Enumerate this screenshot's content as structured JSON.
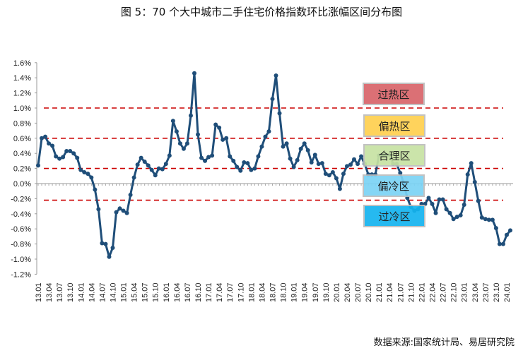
{
  "title": "图 5：70 个大中城市二手住宅价格指数环比涨幅区间分布图",
  "source": "数据来源:国家统计局、易居研究院",
  "zones": [
    {
      "label": "过热区",
      "color": "#d9646a"
    },
    {
      "label": "偏热区",
      "color": "#ffd04f"
    },
    {
      "label": "合理区",
      "color": "#c7e2a3"
    },
    {
      "label": "偏冷区",
      "color": "#7bd3f5"
    },
    {
      "label": "过冷区",
      "color": "#14b4ef"
    }
  ],
  "chart_data": {
    "type": "line",
    "title": "图 5：70 个大中城市二手住宅价格指数环比涨幅区间分布图",
    "xlabel": "",
    "ylabel": "",
    "ylim": [
      -1.2,
      1.6
    ],
    "yticks": [
      "1.6%",
      "1.4%",
      "1.2%",
      "1.0%",
      "0.8%",
      "0.6%",
      "0.4%",
      "0.2%",
      "0.0%",
      "-0.2%",
      "-0.4%",
      "-0.6%",
      "-0.8%",
      "-1.0%",
      "-1.2%"
    ],
    "ytick_values": [
      1.6,
      1.4,
      1.2,
      1.0,
      0.8,
      0.6,
      0.4,
      0.2,
      0,
      -0.2,
      -0.4,
      -0.6,
      -0.8,
      -1.0,
      -1.2
    ],
    "xticks": [
      "13.01",
      "13.04",
      "13.07",
      "13.10",
      "14.01",
      "14.04",
      "14.07",
      "14.10",
      "15.01",
      "15.04",
      "15.07",
      "15.10",
      "16.01",
      "16.04",
      "16.07",
      "16.10",
      "17.01",
      "17.04",
      "17.07",
      "17.10",
      "18.01",
      "18.04",
      "18.07",
      "18.10",
      "19.01",
      "19.04",
      "19.07",
      "19.10",
      "20.01",
      "20.04",
      "20.07",
      "20.10",
      "21.01",
      "21.04",
      "21.07",
      "21.10",
      "22.01",
      "22.04",
      "22.07",
      "22.10",
      "23.01",
      "23.04",
      "23.07",
      "23.10",
      "24.01"
    ],
    "thresholds": [
      1.0,
      0.6,
      0.2,
      -0.22
    ],
    "line_color": "#1f4e79",
    "threshold_color": "#cc0000",
    "series": [
      {
        "name": "二手住宅价格指数环比涨幅",
        "values": [
          0.24,
          0.6,
          0.62,
          0.53,
          0.5,
          0.36,
          0.33,
          0.35,
          0.43,
          0.43,
          0.4,
          0.34,
          0.18,
          0.15,
          0.13,
          0.08,
          -0.08,
          -0.34,
          -0.79,
          -0.8,
          -0.97,
          -0.85,
          -0.38,
          -0.33,
          -0.36,
          -0.39,
          -0.15,
          0.08,
          0.25,
          0.34,
          0.29,
          0.24,
          0.18,
          0.11,
          0.2,
          0.19,
          0.26,
          0.37,
          0.83,
          0.69,
          0.53,
          0.46,
          0.53,
          0.9,
          1.46,
          0.65,
          0.34,
          0.3,
          0.35,
          0.37,
          0.78,
          0.74,
          0.58,
          0.6,
          0.36,
          0.3,
          0.22,
          0.17,
          0.28,
          0.27,
          0.18,
          0.2,
          0.36,
          0.49,
          0.62,
          0.69,
          1.12,
          1.43,
          0.93,
          0.49,
          0.53,
          0.33,
          0.22,
          0.31,
          0.46,
          0.53,
          0.44,
          0.28,
          0.38,
          0.26,
          0.27,
          0.13,
          0.11,
          0.15,
          0.07,
          -0.07,
          0.13,
          0.23,
          0.25,
          0.32,
          0.26,
          0.36,
          0.26,
          0.12,
          0.12,
          0.12,
          0.37,
          0.38,
          0.38,
          0.38,
          0.26,
          0.26,
          0.14,
          0.0,
          -0.19,
          -0.31,
          -0.36,
          -0.34,
          -0.27,
          -0.27,
          -0.19,
          -0.27,
          -0.39,
          -0.21,
          -0.21,
          -0.34,
          -0.39,
          -0.47,
          -0.44,
          -0.42,
          -0.28,
          0.12,
          0.27,
          0.02,
          -0.23,
          -0.45,
          -0.47,
          -0.48,
          -0.48,
          -0.59,
          -0.8,
          -0.8,
          -0.68,
          -0.62
        ]
      }
    ]
  }
}
